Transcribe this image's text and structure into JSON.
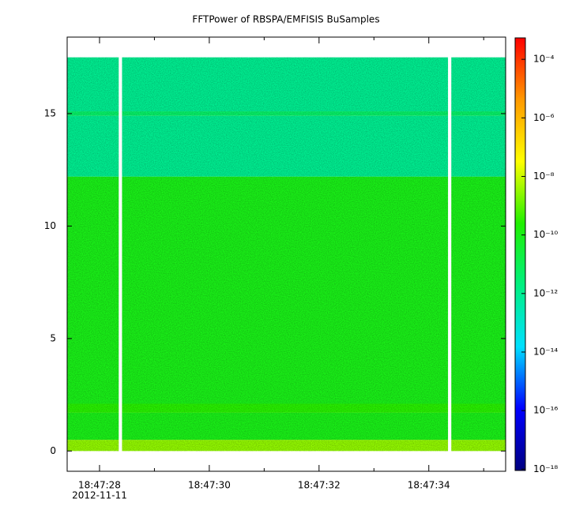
{
  "chart_data": {
    "type": "spectrogram",
    "title": "FFTPower of RBSPA/EMFISIS  BuSamples",
    "xlim": [
      "18:47:27.41",
      "18:47:35.40"
    ],
    "xticks": [
      "18:47:28",
      "18:47:30",
      "18:47:32",
      "18:47:34"
    ],
    "xminor_ticks": [
      "18:47:29",
      "18:47:31",
      "18:47:33",
      "18:47:35"
    ],
    "x_date_label": "2012-11-11",
    "ylim": [
      -0.9,
      18.4
    ],
    "yticks": [
      0,
      5,
      10,
      15
    ],
    "data_time_range": [
      "18:47:27.41",
      "18:47:35.40"
    ],
    "freq_edges": [
      0,
      0.5,
      1.7,
      2.1,
      12.2,
      14.9,
      15.1,
      17.5
    ],
    "power": [
      3e-09,
      1e-10,
      3e-10,
      1e-10,
      1e-12,
      5e-12,
      1e-12
    ],
    "gaps": [
      [
        "18:47:28.35",
        "18:47:28.41"
      ],
      [
        "18:47:34.35",
        "18:47:34.41"
      ]
    ],
    "zlog": true,
    "zlim": [
      9e-19,
      0.00054
    ],
    "zticks": [
      {
        "value": 0.0001,
        "label": "10⁻⁴"
      },
      {
        "value": 1e-06,
        "label": "10⁻⁶"
      },
      {
        "value": 1e-08,
        "label": "10⁻⁸"
      },
      {
        "value": 1e-10,
        "label": "10⁻¹⁰"
      },
      {
        "value": 1e-12,
        "label": "10⁻¹²"
      },
      {
        "value": 1e-14,
        "label": "10⁻¹⁴"
      },
      {
        "value": 1e-16,
        "label": "10⁻¹⁶"
      },
      {
        "value": 1e-18,
        "label": "10⁻¹⁸"
      }
    ],
    "colormap": [
      "#00007f",
      "#0000ff",
      "#00e0ff",
      "#00f080",
      "#20f000",
      "#ffff00",
      "#ff9900",
      "#ff0000"
    ]
  }
}
